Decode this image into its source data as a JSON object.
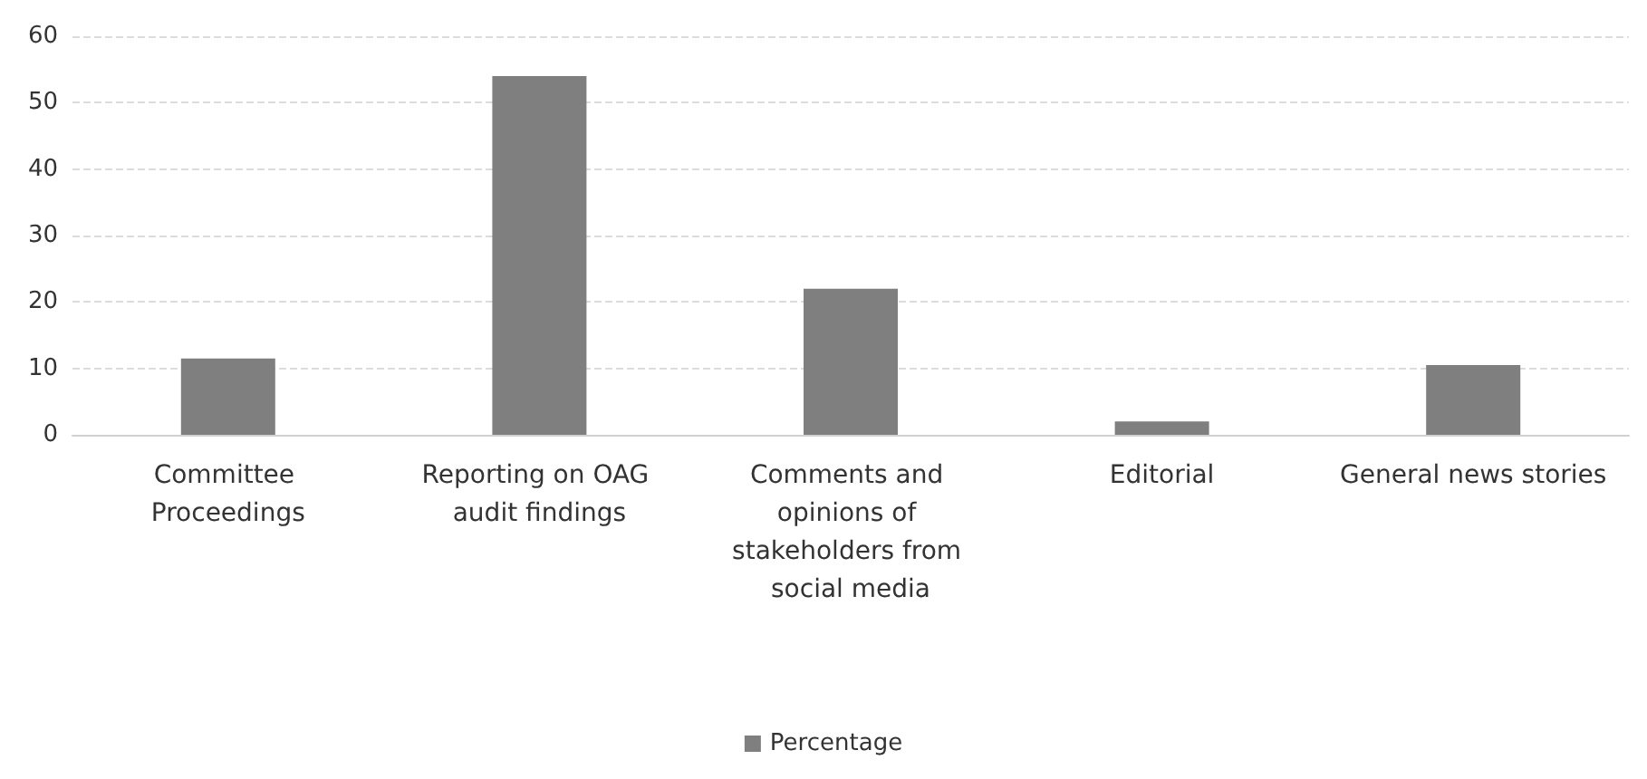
{
  "chart_data": {
    "type": "bar",
    "categories": [
      "Committee Proceedings",
      "Reporting on OAG audit findings",
      "Comments and opinions of stakeholders from social media",
      "Editorial",
      "General news stories"
    ],
    "series": [
      {
        "name": "Percentage",
        "color": "#7f7f7f",
        "values": [
          11.5,
          54,
          22,
          2,
          10.5
        ]
      }
    ],
    "ylim": [
      0,
      60
    ],
    "yticks": [
      0,
      10,
      20,
      30,
      40,
      50,
      60
    ],
    "grid": "y",
    "legend": "bottom"
  }
}
